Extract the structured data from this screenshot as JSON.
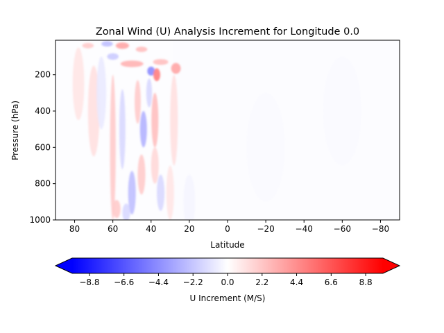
{
  "chart_data": {
    "type": "heatmap",
    "title": "Zonal Wind (U) Analysis Increment for Longitude 0.0",
    "xlabel": "Latitude",
    "ylabel": "Pressure (hPa)",
    "xlim": [
      90,
      -90
    ],
    "ylim": [
      1000,
      10
    ],
    "x_ticks": [
      80,
      60,
      40,
      20,
      0,
      -20,
      -40,
      -60,
      -80
    ],
    "x_tick_labels": [
      "80",
      "60",
      "40",
      "20",
      "0",
      "−20",
      "−40",
      "−60",
      "−80"
    ],
    "y_ticks": [
      200,
      400,
      600,
      800,
      1000
    ],
    "y_tick_labels": [
      "200",
      "400",
      "600",
      "800",
      "1000"
    ],
    "colormap": "bwr",
    "colors": {
      "negative": "#0000ff",
      "zero": "#ffffff",
      "positive": "#ff0000"
    },
    "colorbar": {
      "label": "U Increment (M/S)",
      "vmin": -9.9,
      "vmax": 9.9,
      "extend": "both",
      "ticks": [
        -8.8,
        -6.6,
        -4.4,
        -2.2,
        0.0,
        2.2,
        4.4,
        6.6,
        8.8
      ],
      "tick_labels": [
        "−8.8",
        "−6.6",
        "−4.4",
        "−2.2",
        "0.0",
        "2.2",
        "4.4",
        "6.6",
        "8.8"
      ]
    },
    "features": [
      {
        "lat": 40,
        "p": 180,
        "value": -4.5,
        "dlat": 2.0,
        "dp": 25
      },
      {
        "lat": 37,
        "p": 200,
        "value": 5.0,
        "dlat": 1.8,
        "dp": 35
      },
      {
        "lat": 27,
        "p": 165,
        "value": 3.5,
        "dlat": 2.5,
        "dp": 30
      },
      {
        "lat": 55,
        "p": 40,
        "value": 3.5,
        "dlat": 3.5,
        "dp": 18
      },
      {
        "lat": 63,
        "p": 30,
        "value": -2.5,
        "dlat": 3.0,
        "dp": 15
      },
      {
        "lat": 45,
        "p": 60,
        "value": 2.5,
        "dlat": 3.0,
        "dp": 15
      },
      {
        "lat": 73,
        "p": 40,
        "value": 2.0,
        "dlat": 3.0,
        "dp": 15
      },
      {
        "lat": 50,
        "p": 140,
        "value": 3.0,
        "dlat": 6.0,
        "dp": 18
      },
      {
        "lat": 35,
        "p": 130,
        "value": 2.5,
        "dlat": 4.0,
        "dp": 16
      },
      {
        "lat": 60,
        "p": 100,
        "value": -2.0,
        "dlat": 3.0,
        "dp": 18
      },
      {
        "lat": 38,
        "p": 450,
        "value": 2.5,
        "dlat": 1.8,
        "dp": 150
      },
      {
        "lat": 44,
        "p": 500,
        "value": -3.0,
        "dlat": 1.8,
        "dp": 100
      },
      {
        "lat": 47,
        "p": 350,
        "value": 2.0,
        "dlat": 1.6,
        "dp": 120
      },
      {
        "lat": 41,
        "p": 300,
        "value": -1.5,
        "dlat": 1.5,
        "dp": 80
      },
      {
        "lat": 60,
        "p": 600,
        "value": 2.0,
        "dlat": 1.5,
        "dp": 400
      },
      {
        "lat": 55,
        "p": 500,
        "value": -1.5,
        "dlat": 1.6,
        "dp": 220
      },
      {
        "lat": 50,
        "p": 850,
        "value": -2.5,
        "dlat": 2.0,
        "dp": 120
      },
      {
        "lat": 45,
        "p": 750,
        "value": 2.0,
        "dlat": 2.0,
        "dp": 110
      },
      {
        "lat": 38,
        "p": 700,
        "value": 1.5,
        "dlat": 2.0,
        "dp": 100
      },
      {
        "lat": 35,
        "p": 850,
        "value": -1.5,
        "dlat": 2.0,
        "dp": 100
      },
      {
        "lat": 53,
        "p": 960,
        "value": -1.5,
        "dlat": 2.0,
        "dp": 50
      },
      {
        "lat": 58,
        "p": 940,
        "value": 2.0,
        "dlat": 2.0,
        "dp": 50
      },
      {
        "lat": 70,
        "p": 400,
        "value": 1.2,
        "dlat": 3.0,
        "dp": 250
      },
      {
        "lat": 78,
        "p": 250,
        "value": 1.0,
        "dlat": 3.0,
        "dp": 200
      },
      {
        "lat": 66,
        "p": 300,
        "value": -0.8,
        "dlat": 2.5,
        "dp": 200
      },
      {
        "lat": 28,
        "p": 450,
        "value": 1.2,
        "dlat": 2.0,
        "dp": 250
      },
      {
        "lat": 30,
        "p": 850,
        "value": 1.0,
        "dlat": 2.0,
        "dp": 150
      },
      {
        "lat": 20,
        "p": 900,
        "value": -0.4,
        "dlat": 3.0,
        "dp": 150
      },
      {
        "lat": -20,
        "p": 600,
        "value": -0.2,
        "dlat": 10.0,
        "dp": 300
      },
      {
        "lat": -60,
        "p": 400,
        "value": -0.2,
        "dlat": 10.0,
        "dp": 300
      }
    ]
  }
}
